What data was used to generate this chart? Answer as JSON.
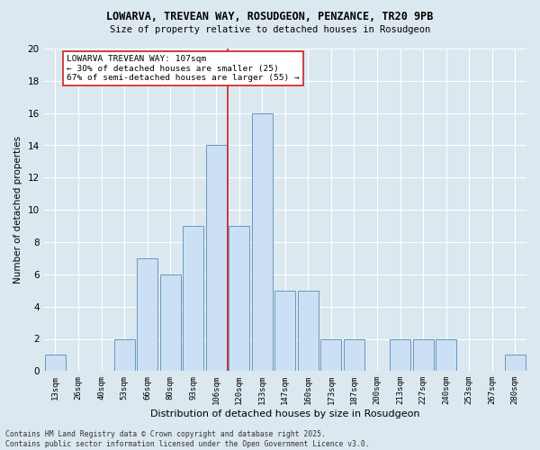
{
  "title_line1": "LOWARVA, TREVEAN WAY, ROSUDGEON, PENZANCE, TR20 9PB",
  "title_line2": "Size of property relative to detached houses in Rosudgeon",
  "xlabel": "Distribution of detached houses by size in Rosudgeon",
  "ylabel": "Number of detached properties",
  "categories": [
    "13sqm",
    "26sqm",
    "40sqm",
    "53sqm",
    "66sqm",
    "80sqm",
    "93sqm",
    "106sqm",
    "120sqm",
    "133sqm",
    "147sqm",
    "160sqm",
    "173sqm",
    "187sqm",
    "200sqm",
    "213sqm",
    "227sqm",
    "240sqm",
    "253sqm",
    "267sqm",
    "280sqm"
  ],
  "values": [
    1,
    0,
    0,
    2,
    7,
    6,
    9,
    14,
    9,
    16,
    5,
    5,
    2,
    2,
    0,
    2,
    2,
    2,
    0,
    0,
    1
  ],
  "bar_color": "#cce0f5",
  "bar_edge_color": "#6699bb",
  "vline_x_index": 7,
  "vline_color": "#cc2222",
  "annotation_text": "LOWARVA TREVEAN WAY: 107sqm\n← 30% of detached houses are smaller (25)\n67% of semi-detached houses are larger (55) →",
  "annotation_box_facecolor": "#ffffff",
  "annotation_box_edgecolor": "#cc2222",
  "ylim": [
    0,
    20
  ],
  "yticks": [
    0,
    2,
    4,
    6,
    8,
    10,
    12,
    14,
    16,
    18,
    20
  ],
  "background_color": "#dce8f0",
  "grid_color": "#ffffff",
  "footer_line1": "Contains HM Land Registry data © Crown copyright and database right 2025.",
  "footer_line2": "Contains public sector information licensed under the Open Government Licence v3.0."
}
